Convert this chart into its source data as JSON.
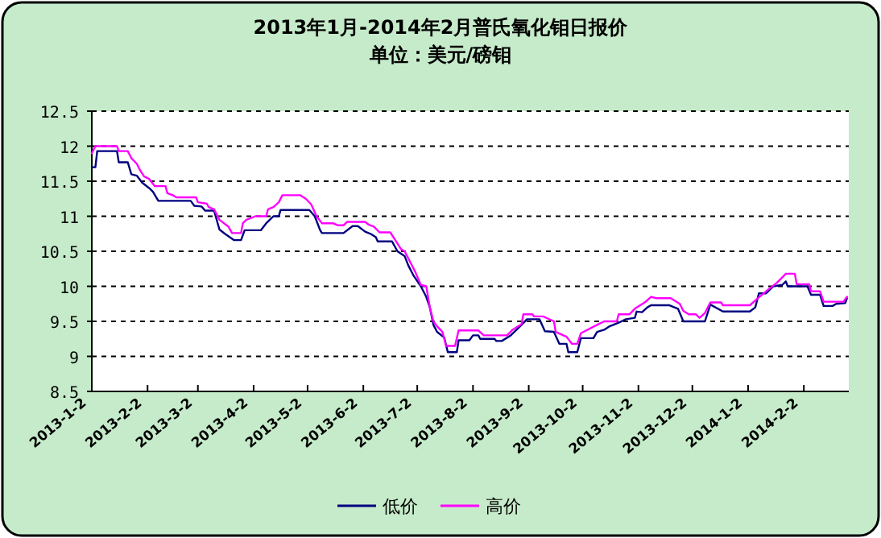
{
  "chart_data": {
    "type": "line",
    "title": "2013年1月-2014年2月普氏氧化钼日报价",
    "subtitle": "单位：美元/磅钼",
    "xlim": [
      "2013-01-02",
      "2014-02-27"
    ],
    "ylim": [
      8.5,
      12.5
    ],
    "yticks": [
      8.5,
      9,
      9.5,
      10,
      10.5,
      11,
      11.5,
      12,
      12.5
    ],
    "xticks": [
      {
        "value": "2013-01-02",
        "label": "2013-1-2"
      },
      {
        "value": "2013-02-02",
        "label": "2013-2-2"
      },
      {
        "value": "2013-03-02",
        "label": "2013-3-2"
      },
      {
        "value": "2013-04-02",
        "label": "2013-4-2"
      },
      {
        "value": "2013-05-02",
        "label": "2013-5-2"
      },
      {
        "value": "2013-06-02",
        "label": "2013-6-2"
      },
      {
        "value": "2013-07-02",
        "label": "2013-7-2"
      },
      {
        "value": "2013-08-02",
        "label": "2013-8-2"
      },
      {
        "value": "2013-09-02",
        "label": "2013-9-2"
      },
      {
        "value": "2013-10-02",
        "label": "2013-10-2"
      },
      {
        "value": "2013-11-02",
        "label": "2013-11-2"
      },
      {
        "value": "2013-12-02",
        "label": "2013-12-2"
      },
      {
        "value": "2014-01-02",
        "label": "2014-1-2"
      },
      {
        "value": "2014-02-02",
        "label": "2014-2-2"
      }
    ],
    "grid": "y",
    "legend": "bottom",
    "series": [
      {
        "name": "低价",
        "color": "#000080",
        "x": [
          "2013-01-02",
          "2013-01-04",
          "2013-01-05",
          "2013-01-16",
          "2013-01-17",
          "2013-01-22",
          "2013-01-24",
          "2013-01-27",
          "2013-01-30",
          "2013-02-03",
          "2013-02-05",
          "2013-02-08",
          "2013-02-26",
          "2013-02-28",
          "2013-03-04",
          "2013-03-06",
          "2013-03-11",
          "2013-03-14",
          "2013-03-17",
          "2013-03-22",
          "2013-03-26",
          "2013-03-28",
          "2013-04-06",
          "2013-04-09",
          "2013-04-11",
          "2013-04-13",
          "2013-04-16",
          "2013-04-17",
          "2013-05-03",
          "2013-05-06",
          "2013-05-09",
          "2013-05-10",
          "2013-05-22",
          "2013-05-27",
          "2013-05-30",
          "2013-06-03",
          "2013-06-06",
          "2013-06-09",
          "2013-06-10",
          "2013-06-18",
          "2013-06-21",
          "2013-06-25",
          "2013-06-27",
          "2013-06-30",
          "2013-07-04",
          "2013-07-07",
          "2013-07-09",
          "2013-07-11",
          "2013-07-13",
          "2013-07-17",
          "2013-07-19",
          "2013-07-24",
          "2013-07-25",
          "2013-07-31",
          "2013-08-02",
          "2013-08-05",
          "2013-08-06",
          "2013-08-14",
          "2013-08-15",
          "2013-08-18",
          "2013-08-23",
          "2013-08-29",
          "2013-09-01",
          "2013-09-08",
          "2013-09-11",
          "2013-09-16",
          "2013-09-19",
          "2013-09-23",
          "2013-09-24",
          "2013-09-29",
          "2013-10-01",
          "2013-10-08",
          "2013-10-10",
          "2013-10-14",
          "2013-10-17",
          "2013-10-22",
          "2013-10-26",
          "2013-10-31",
          "2013-11-01",
          "2013-11-04",
          "2013-11-07",
          "2013-11-09",
          "2013-11-19",
          "2013-11-24",
          "2013-11-27",
          "2013-12-09",
          "2013-12-12",
          "2013-12-19",
          "2014-01-03",
          "2014-01-06",
          "2014-01-08",
          "2014-01-12",
          "2014-01-16",
          "2014-01-21",
          "2014-01-23",
          "2014-01-24",
          "2014-02-04",
          "2014-02-06",
          "2014-02-11",
          "2014-02-13",
          "2014-02-18",
          "2014-02-20",
          "2014-02-25",
          "2014-02-26"
        ],
        "values": [
          11.7,
          11.7,
          11.93,
          11.93,
          11.77,
          11.77,
          11.6,
          11.58,
          11.48,
          11.4,
          11.35,
          11.22,
          11.22,
          11.15,
          11.14,
          11.08,
          11.08,
          10.81,
          10.75,
          10.66,
          10.66,
          10.8,
          10.8,
          10.9,
          10.95,
          11.0,
          11.0,
          11.09,
          11.09,
          11.0,
          10.8,
          10.76,
          10.76,
          10.86,
          10.86,
          10.78,
          10.75,
          10.7,
          10.64,
          10.64,
          10.5,
          10.43,
          10.3,
          10.15,
          10.0,
          9.85,
          9.7,
          9.45,
          9.35,
          9.27,
          9.06,
          9.06,
          9.23,
          9.23,
          9.3,
          9.3,
          9.25,
          9.25,
          9.22,
          9.22,
          9.3,
          9.45,
          9.53,
          9.53,
          9.36,
          9.35,
          9.18,
          9.18,
          9.06,
          9.06,
          9.26,
          9.26,
          9.35,
          9.38,
          9.43,
          9.48,
          9.53,
          9.55,
          9.64,
          9.63,
          9.7,
          9.73,
          9.73,
          9.68,
          9.5,
          9.5,
          9.74,
          9.64,
          9.64,
          9.7,
          9.9,
          9.9,
          10.0,
          10.02,
          10.07,
          10.0,
          10.0,
          9.88,
          9.88,
          9.72,
          9.72,
          9.75,
          9.76,
          9.83
        ]
      },
      {
        "name": "高价",
        "color": "#ff00ff",
        "x": [
          "2013-01-02",
          "2013-01-04",
          "2013-01-16",
          "2013-01-17",
          "2013-01-22",
          "2013-01-24",
          "2013-01-27",
          "2013-01-29",
          "2013-01-31",
          "2013-02-03",
          "2013-02-06",
          "2013-02-12",
          "2013-02-13",
          "2013-02-16",
          "2013-02-18",
          "2013-03-01",
          "2013-03-02",
          "2013-03-07",
          "2013-03-08",
          "2013-03-11",
          "2013-03-14",
          "2013-03-19",
          "2013-03-21",
          "2013-03-26",
          "2013-03-27",
          "2013-03-29",
          "2013-04-03",
          "2013-04-09",
          "2013-04-10",
          "2013-04-13",
          "2013-04-16",
          "2013-04-18",
          "2013-04-28",
          "2013-05-01",
          "2013-05-04",
          "2013-05-07",
          "2013-05-10",
          "2013-05-16",
          "2013-05-19",
          "2013-05-22",
          "2013-05-24",
          "2013-06-03",
          "2013-06-05",
          "2013-06-08",
          "2013-06-11",
          "2013-06-17",
          "2013-06-20",
          "2013-06-23",
          "2013-06-25",
          "2013-06-28",
          "2013-07-01",
          "2013-07-04",
          "2013-07-07",
          "2013-07-09",
          "2013-07-11",
          "2013-07-13",
          "2013-07-16",
          "2013-07-18",
          "2013-07-23",
          "2013-07-25",
          "2013-08-05",
          "2013-08-08",
          "2013-08-21",
          "2013-08-24",
          "2013-08-29",
          "2013-08-30",
          "2013-09-04",
          "2013-09-05",
          "2013-09-10",
          "2013-09-16",
          "2013-09-17",
          "2013-09-23",
          "2013-09-26",
          "2013-09-29",
          "2013-10-01",
          "2013-10-10",
          "2013-10-14",
          "2013-10-21",
          "2013-10-22",
          "2013-10-28",
          "2013-10-31",
          "2013-11-06",
          "2013-11-09",
          "2013-11-12",
          "2013-11-20",
          "2013-11-25",
          "2013-11-27",
          "2013-11-30",
          "2013-12-04",
          "2013-12-06",
          "2013-12-09",
          "2013-12-12",
          "2013-12-18",
          "2013-12-19",
          "2014-01-03",
          "2014-01-07",
          "2014-01-13",
          "2014-01-18",
          "2014-01-23",
          "2014-01-28",
          "2014-01-29",
          "2014-02-05",
          "2014-02-06",
          "2014-02-11",
          "2014-02-13",
          "2014-02-24",
          "2014-02-26"
        ],
        "values": [
          11.9,
          12.0,
          12.0,
          11.93,
          11.93,
          11.83,
          11.75,
          11.65,
          11.57,
          11.53,
          11.43,
          11.43,
          11.33,
          11.3,
          11.27,
          11.27,
          11.2,
          11.18,
          11.13,
          11.1,
          10.95,
          10.85,
          10.76,
          10.76,
          10.9,
          10.95,
          11.0,
          11.0,
          11.1,
          11.13,
          11.2,
          11.3,
          11.3,
          11.25,
          11.17,
          11.0,
          10.9,
          10.9,
          10.87,
          10.87,
          10.92,
          10.92,
          10.88,
          10.85,
          10.77,
          10.77,
          10.65,
          10.53,
          10.5,
          10.35,
          10.2,
          10.02,
          10.0,
          9.7,
          9.5,
          9.43,
          9.35,
          9.15,
          9.15,
          9.37,
          9.37,
          9.3,
          9.3,
          9.38,
          9.46,
          9.6,
          9.6,
          9.57,
          9.57,
          9.5,
          9.35,
          9.28,
          9.18,
          9.18,
          9.33,
          9.45,
          9.5,
          9.5,
          9.6,
          9.6,
          9.68,
          9.78,
          9.85,
          9.83,
          9.83,
          9.75,
          9.65,
          9.6,
          9.6,
          9.55,
          9.62,
          9.77,
          9.77,
          9.73,
          9.73,
          9.82,
          9.95,
          10.05,
          10.18,
          10.18,
          10.03,
          10.03,
          9.93,
          9.93,
          9.78,
          9.78,
          9.85
        ]
      }
    ]
  }
}
